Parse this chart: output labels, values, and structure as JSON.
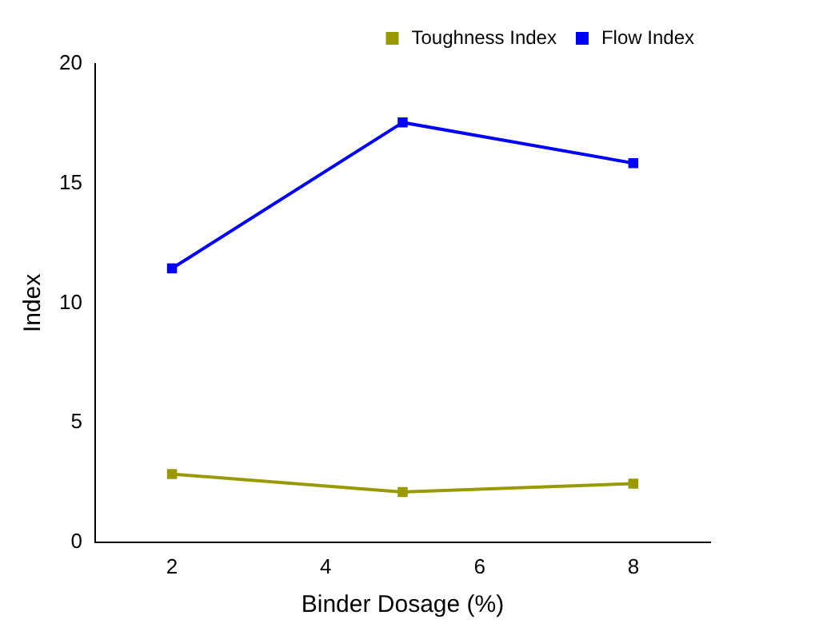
{
  "chart_data": {
    "type": "line",
    "xlabel": "Binder Dosage (%)",
    "ylabel": "Index",
    "x": [
      2,
      5,
      8
    ],
    "series": [
      {
        "name": "Toughness Index",
        "color": "#999900",
        "values": [
          2.85,
          2.1,
          2.45
        ]
      },
      {
        "name": "Flow Index",
        "color": "#0000ff",
        "values": [
          11.45,
          17.55,
          15.85
        ]
      }
    ],
    "xlim": [
      1,
      9
    ],
    "xticks": [
      2,
      4,
      6,
      8
    ],
    "ylim": [
      0,
      20
    ],
    "yticks": [
      0,
      5,
      10,
      15,
      20
    ],
    "grid": false,
    "legend": "top right",
    "marker": "square",
    "line_style": "solid"
  }
}
